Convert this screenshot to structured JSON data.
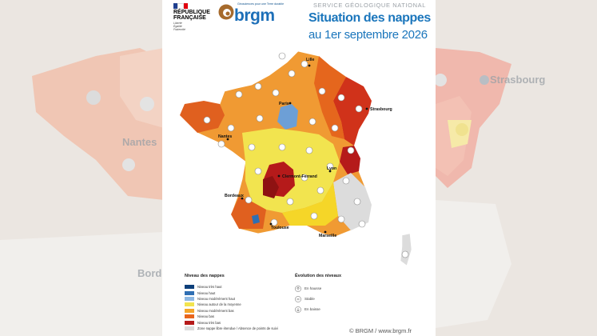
{
  "header": {
    "service": "SERVICE GÉOLOGIQUE NATIONAL",
    "republique": "RÉPUBLIQUE\nFRANÇAISE",
    "motto": "Liberté\nÉgalité\nFraternité",
    "brgm_tagline": "Géosciences pour une Terre durable",
    "brgm_word": "brgm",
    "title": "Situation des nappes",
    "subtitle": "au 1er septembre 2026"
  },
  "cities": [
    "Lille",
    "Paris",
    "Strasbourg",
    "Nantes",
    "Lyon",
    "Clermont-Ferrand",
    "Bordeaux",
    "Toulouse",
    "Marseille"
  ],
  "background_labels": [
    "Nantes",
    "Strasbourg",
    "Borde"
  ],
  "legend": {
    "title": "Niveau des nappes",
    "items": [
      {
        "label": "Niveau très haut",
        "color": "#0d3f7a"
      },
      {
        "label": "Niveau haut",
        "color": "#2f6fb3"
      },
      {
        "label": "Niveau modérément haut",
        "color": "#8db8e3"
      },
      {
        "label": "Niveau autour de la moyenne",
        "color": "#f2e44f"
      },
      {
        "label": "Niveau modérément bas",
        "color": "#f4a62a"
      },
      {
        "label": "Niveau bas",
        "color": "#e8661c"
      },
      {
        "label": "Niveau très bas",
        "color": "#b51a1a"
      },
      {
        "label": "Zone nappe libre étendue / Absence de points de suivi",
        "color": "#dcdcdc"
      }
    ]
  },
  "evolution": {
    "title": "Évolution des niveaux",
    "items": [
      {
        "label": "En hausse",
        "icon": "arrow-up-icon"
      },
      {
        "label": "Stable",
        "icon": "equal-icon"
      },
      {
        "label": "En baisse",
        "icon": "arrow-down-icon"
      }
    ]
  },
  "credit": "© BRGM / www.brgm.fr"
}
